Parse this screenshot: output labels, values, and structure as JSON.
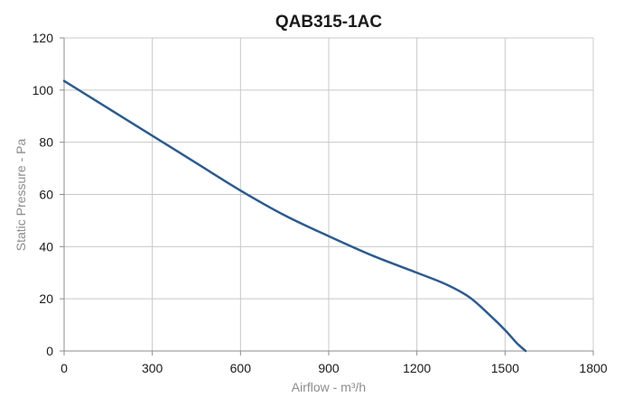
{
  "chart_data": {
    "type": "line",
    "title": "QAB315-1AC",
    "xlabel": "Airflow - m³/h",
    "ylabel": "Static Pressure - Pa",
    "xlim": [
      0,
      1800
    ],
    "ylim": [
      0,
      120
    ],
    "xticks": [
      0,
      300,
      600,
      900,
      1200,
      1500,
      1800
    ],
    "yticks": [
      0,
      20,
      40,
      60,
      80,
      100,
      120
    ],
    "grid": true,
    "series": [
      {
        "color": "#2d5b8e",
        "x": [
          0,
          150,
          300,
          450,
          600,
          750,
          900,
          1050,
          1200,
          1300,
          1380,
          1450,
          1500,
          1540,
          1570
        ],
        "y": [
          103.5,
          93,
          82.5,
          72,
          61.5,
          52,
          44,
          36.5,
          30,
          25.5,
          20.5,
          13.5,
          8,
          3,
          0
        ]
      }
    ]
  }
}
